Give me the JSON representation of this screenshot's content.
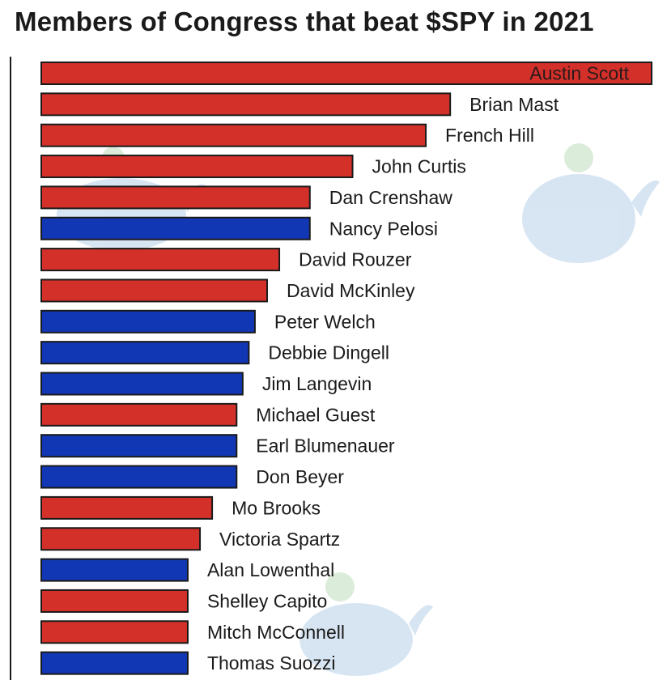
{
  "chart_data": {
    "type": "bar",
    "orientation": "horizontal",
    "title": "Members of Congress that beat $SPY in 2021",
    "xlabel": "",
    "ylabel": "",
    "grid": false,
    "legend": "none",
    "colors": {
      "republican": "#d4302a",
      "democrat": "#1237b5",
      "outline": "#1a1a1a"
    },
    "categories": [
      "Austin Scott",
      "Brian Mast",
      "French Hill",
      "John Curtis",
      "Dan Crenshaw",
      "Nancy Pelosi",
      "David Rouzer",
      "David McKinley",
      "Peter Welch",
      "Debbie Dingell",
      "Jim Langevin",
      "Michael Guest",
      "Earl Blumenauer",
      "Don Beyer",
      "Mo Brooks",
      "Victoria Spartz",
      "Alan Lowenthal",
      "Shelley Capito",
      "Mitch McConnell",
      "Thomas Suozzi"
    ],
    "values": [
      100,
      67,
      63,
      51,
      44,
      44,
      39,
      37,
      35,
      34,
      33,
      32,
      32,
      32,
      28,
      26,
      24,
      24,
      24,
      24
    ],
    "party": [
      "R",
      "R",
      "R",
      "R",
      "R",
      "D",
      "R",
      "R",
      "D",
      "D",
      "D",
      "R",
      "D",
      "D",
      "R",
      "R",
      "D",
      "R",
      "R",
      "D"
    ],
    "note_values": "relative bar lengths estimated (longest = 100); no axis values printed"
  }
}
